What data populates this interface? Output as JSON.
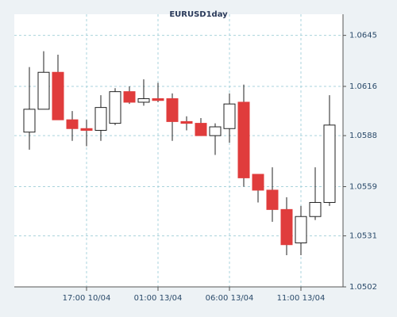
{
  "chart_data": {
    "type": "candlestick",
    "title": "EURUSD1day",
    "categories": [
      null,
      null,
      null,
      null,
      "17:00 10/04",
      null,
      null,
      null,
      null,
      "01:00 13/04",
      null,
      null,
      null,
      null,
      "06:00 13/04",
      null,
      null,
      null,
      null,
      "11:00 13/04",
      null,
      null
    ],
    "open": [
      1.059,
      1.0603,
      1.0624,
      1.0597,
      1.0592,
      1.0591,
      1.0595,
      1.0613,
      1.0607,
      1.0609,
      1.0609,
      1.0596,
      1.0595,
      1.0588,
      1.0592,
      1.0607,
      1.0566,
      1.0557,
      1.0546,
      1.0527,
      1.0542,
      1.055
    ],
    "high": [
      1.0627,
      1.0636,
      1.0634,
      1.0602,
      1.0597,
      1.0611,
      1.0615,
      1.0616,
      1.062,
      1.0618,
      1.0612,
      1.0599,
      1.0598,
      1.0595,
      1.0612,
      1.0617,
      1.0566,
      1.057,
      1.0553,
      1.0548,
      1.057,
      1.0611
    ],
    "low": [
      1.058,
      1.0603,
      1.0597,
      1.0585,
      1.0582,
      1.0585,
      1.0594,
      1.0606,
      1.0605,
      1.0607,
      1.0585,
      1.0591,
      1.0588,
      1.0577,
      1.0584,
      1.0559,
      1.055,
      1.0539,
      1.052,
      1.052,
      1.054,
      1.0548
    ],
    "close": [
      1.0603,
      1.0624,
      1.0597,
      1.0592,
      1.0591,
      1.0604,
      1.0613,
      1.0607,
      1.0609,
      1.0608,
      1.0596,
      1.0595,
      1.0588,
      1.0593,
      1.0606,
      1.0564,
      1.0557,
      1.0546,
      1.0526,
      1.0542,
      1.055,
      1.0594
    ],
    "up_color": "#ffffff",
    "down_color": "#e03c3c",
    "ylim": [
      1.0502,
      1.0657
    ],
    "yticks": [
      1.0502,
      1.0531,
      1.0559,
      1.0588,
      1.0616,
      1.0645
    ],
    "grid": true
  }
}
